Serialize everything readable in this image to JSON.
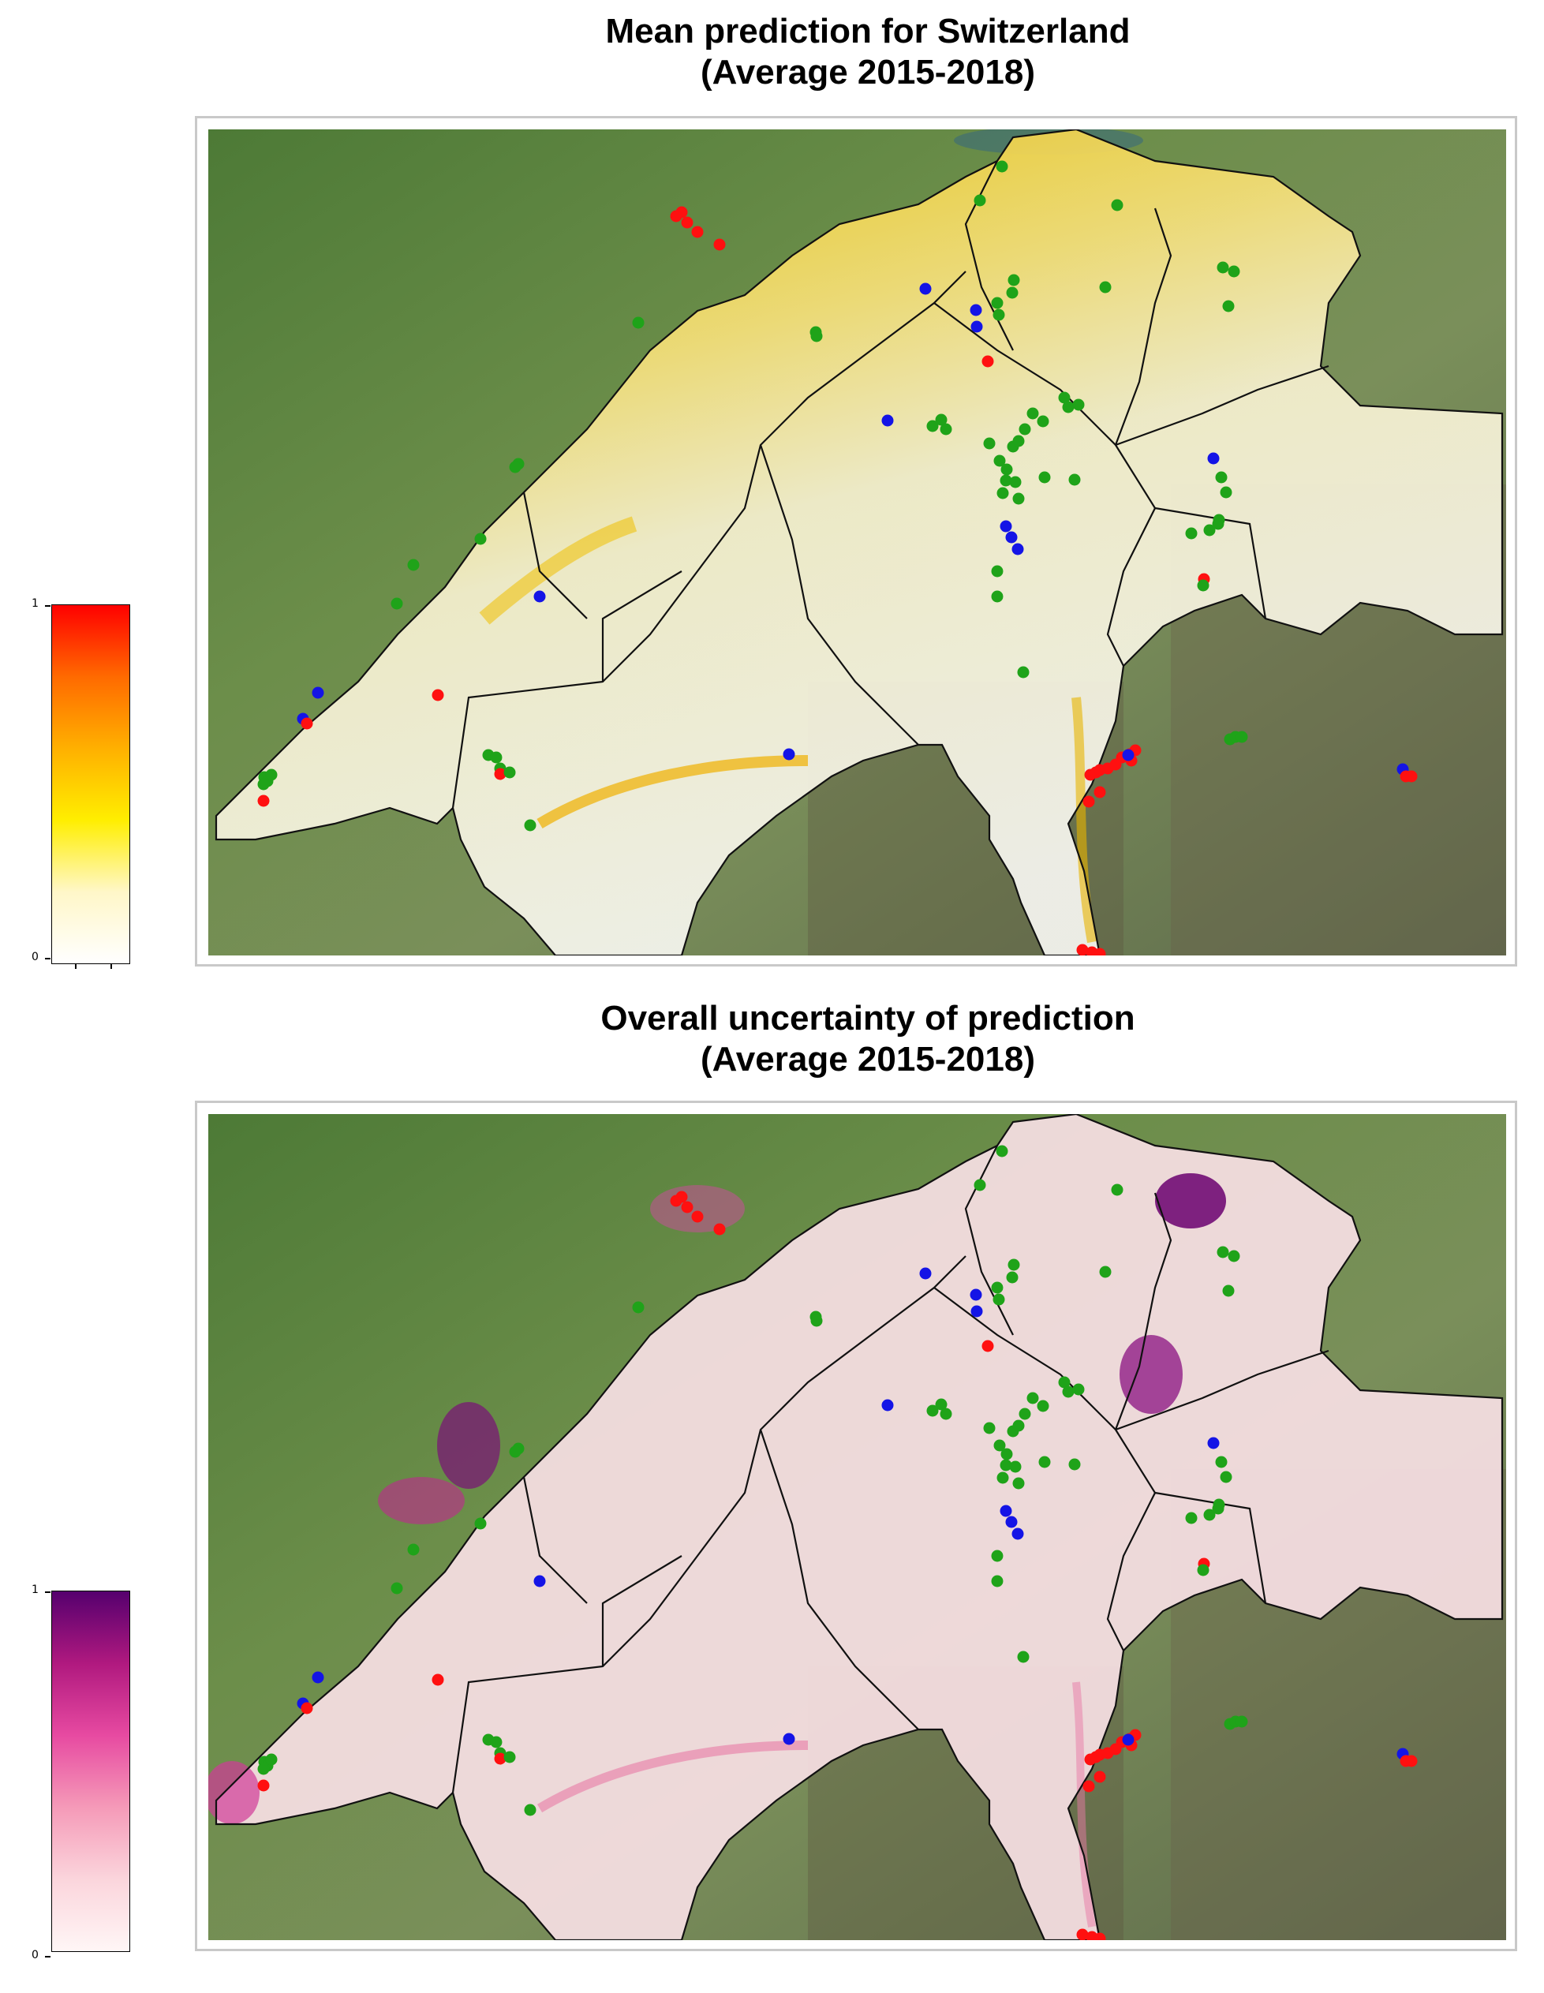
{
  "panels": [
    {
      "title_line1": "Mean prediction for Switzerland",
      "title_line2": "(Average 2015-2018)",
      "colorbar": {
        "min_label": "0",
        "max_label": "1",
        "colors": [
          "#ffffff",
          "#fff7c8",
          "#ffee00",
          "#ffb000",
          "#ff6a00",
          "#ff0000"
        ]
      },
      "overlay_color": "#f2d500"
    },
    {
      "title_line1": "Overall uncertainty of prediction",
      "title_line2": "(Average 2015-2018)",
      "colorbar": {
        "min_label": "0",
        "max_label": "1",
        "colors": [
          "#fff6f6",
          "#fbd5dc",
          "#f59ab8",
          "#e74aa1",
          "#b0197f",
          "#55006e"
        ]
      },
      "overlay_color": "#f4c3cf"
    }
  ],
  "legend_colors": {
    "green": "#1fa319",
    "blue": "#1414e6",
    "red": "#ff1010"
  }
}
